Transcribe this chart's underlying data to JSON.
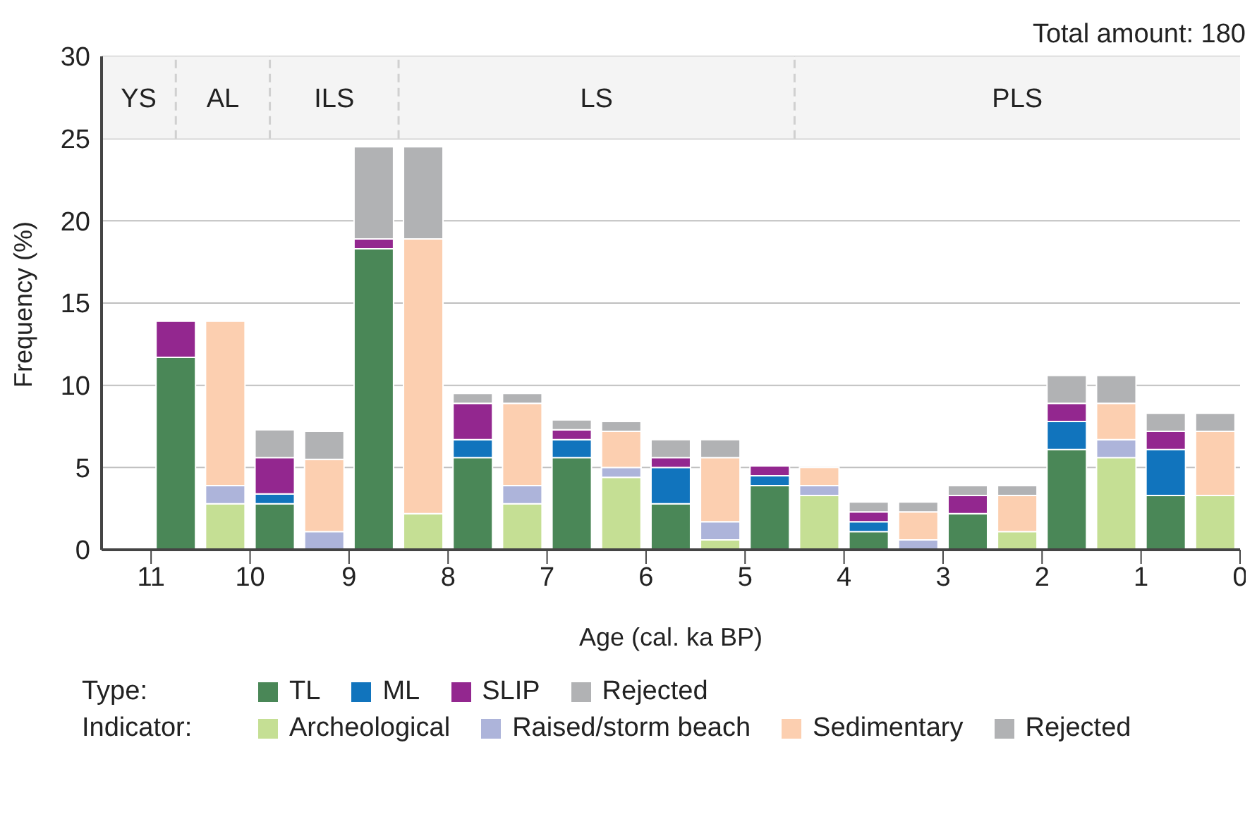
{
  "chart_data": {
    "type": "bar",
    "stacked": true,
    "xlabel": "Age (cal. ka BP)",
    "ylabel": "Frequency (%)",
    "x": [
      10.75,
      10.25,
      9.75,
      9.25,
      8.75,
      8.25,
      7.75,
      7.25,
      6.75,
      6.25,
      5.75,
      5.25,
      4.75,
      4.25,
      3.75,
      3.25,
      2.75,
      2.25,
      1.75,
      1.25,
      0.75,
      0.25
    ],
    "xlim": [
      11.5,
      0
    ],
    "xticks": [
      11,
      10,
      9,
      8,
      7,
      6,
      5,
      4,
      3,
      2,
      1,
      0
    ],
    "ylim": [
      0,
      30
    ],
    "yticks": [
      0,
      5,
      10,
      15,
      20,
      25,
      30
    ],
    "grid": "y",
    "legend": "bottom",
    "annotations": [
      "Total amount: 180",
      "Type:",
      "Indicator:"
    ],
    "ref_lines": [
      {
        "axis": "x",
        "value": 10.75,
        "color": "#d0d0d0",
        "line_style": "dashed"
      },
      {
        "axis": "x",
        "value": 9.8,
        "color": "#d0d0d0",
        "line_style": "dashed"
      },
      {
        "axis": "x",
        "value": 8.5,
        "color": "#d0d0d0",
        "line_style": "dashed"
      },
      {
        "axis": "x",
        "value": 4.5,
        "color": "#d0d0d0",
        "line_style": "dashed"
      }
    ],
    "bands": [
      {
        "axis": "x",
        "from": 11.5,
        "to": 10.75,
        "label": "YS",
        "color": "#f4f4f4"
      },
      {
        "axis": "x",
        "from": 10.75,
        "to": 9.8,
        "label": "AL",
        "color": "#f4f4f4"
      },
      {
        "axis": "x",
        "from": 9.8,
        "to": 8.5,
        "label": "ILS",
        "color": "#f4f4f4"
      },
      {
        "axis": "x",
        "from": 8.5,
        "to": 4.5,
        "label": "LS",
        "color": "#f4f4f4"
      },
      {
        "axis": "x",
        "from": 4.5,
        "to": 0,
        "label": "PLS",
        "color": "#f4f4f4"
      }
    ],
    "series": [
      {
        "name": "TL",
        "color": "#4a8757",
        "values": [
          11.7,
          null,
          2.8,
          null,
          18.3,
          null,
          5.6,
          null,
          5.6,
          null,
          2.8,
          null,
          3.9,
          null,
          1.1,
          null,
          2.2,
          null,
          6.1,
          null,
          3.3,
          null
        ]
      },
      {
        "name": "ML",
        "color": "#1174bd",
        "values": [
          null,
          null,
          0.6,
          null,
          null,
          null,
          1.1,
          null,
          1.1,
          null,
          2.2,
          null,
          0.6,
          null,
          0.6,
          null,
          null,
          null,
          1.7,
          null,
          2.8,
          null
        ]
      },
      {
        "name": "SLIP",
        "color": "#93278f",
        "values": [
          2.2,
          null,
          2.2,
          null,
          0.6,
          null,
          2.2,
          null,
          0.6,
          null,
          0.6,
          null,
          0.6,
          null,
          0.6,
          null,
          1.1,
          null,
          1.1,
          null,
          1.1,
          null
        ]
      },
      {
        "name": "Rejected",
        "color": "#b1b2b4",
        "values": [
          null,
          null,
          1.7,
          null,
          5.6,
          null,
          0.6,
          null,
          0.6,
          null,
          1.1,
          null,
          null,
          null,
          0.6,
          null,
          0.6,
          null,
          1.7,
          null,
          1.1,
          null
        ]
      },
      {
        "name": "Archeological",
        "color": "#c5df94",
        "values": [
          null,
          2.8,
          null,
          null,
          null,
          2.2,
          null,
          2.8,
          null,
          4.4,
          null,
          0.6,
          null,
          3.3,
          null,
          null,
          null,
          1.1,
          null,
          5.6,
          null,
          3.3
        ]
      },
      {
        "name": "Raised/storm beach",
        "color": "#adb4da",
        "values": [
          null,
          1.1,
          null,
          1.1,
          null,
          null,
          null,
          1.1,
          null,
          0.6,
          null,
          1.1,
          null,
          0.6,
          null,
          0.6,
          null,
          null,
          null,
          1.1,
          null,
          null
        ]
      },
      {
        "name": "Sedimentary",
        "color": "#fccfb0",
        "values": [
          null,
          10,
          null,
          4.4,
          null,
          16.7,
          null,
          5,
          null,
          2.2,
          null,
          3.9,
          null,
          1.1,
          null,
          1.7,
          null,
          2.2,
          null,
          2.2,
          null,
          3.9
        ]
      },
      {
        "name": "Rejected",
        "color": "#b1b2b4",
        "values": [
          null,
          null,
          null,
          1.7,
          null,
          5.6,
          null,
          0.6,
          null,
          0.6,
          null,
          1.1,
          null,
          null,
          null,
          0.6,
          null,
          0.6,
          null,
          1.7,
          null,
          1.1
        ]
      }
    ]
  }
}
